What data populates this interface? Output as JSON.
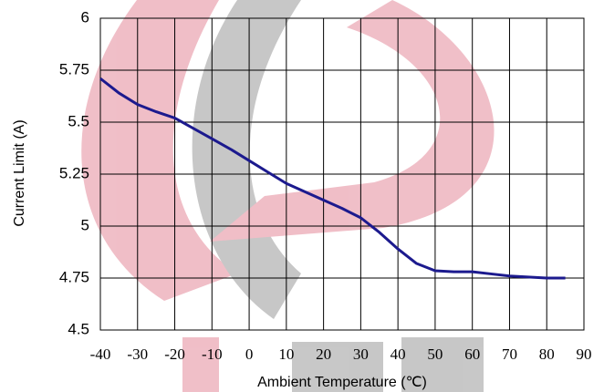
{
  "chart_data": {
    "type": "line",
    "y_label": "Current Limit (A)",
    "x_label": "Ambient Temperature (℃)",
    "x": [
      -40,
      -35,
      -30,
      -25,
      -20,
      -15,
      -10,
      -5,
      0,
      5,
      10,
      15,
      20,
      25,
      30,
      35,
      40,
      45,
      50,
      55,
      60,
      65,
      70,
      75,
      80,
      85
    ],
    "series": [
      {
        "color": "#1c1a8e",
        "values": [
          5.71,
          5.64,
          5.585,
          5.55,
          5.52,
          5.47,
          5.42,
          5.37,
          5.315,
          5.26,
          5.205,
          5.165,
          5.125,
          5.085,
          5.04,
          4.97,
          4.89,
          4.82,
          4.785,
          4.78,
          4.78,
          4.77,
          4.76,
          4.755,
          4.75,
          4.75
        ]
      }
    ],
    "xlim": [
      -40,
      90
    ],
    "xticks": [
      -40,
      -30,
      -20,
      -10,
      0,
      10,
      20,
      30,
      40,
      50,
      60,
      70,
      80,
      90
    ],
    "ylim": [
      4.5,
      6
    ],
    "yticks": [
      4.5,
      4.75,
      5,
      5.25,
      5.5,
      5.75,
      6
    ],
    "grid": true
  }
}
